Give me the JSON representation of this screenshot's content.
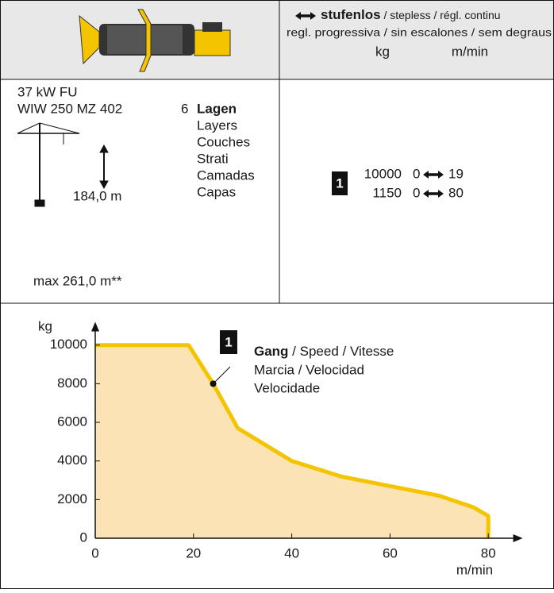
{
  "header": {
    "mode": "stufenlos",
    "mode_rest": " / stepless / régl. continu",
    "mode_line2": "regl. progressiva / sin escalones / sem degraus",
    "unit_load": "kg",
    "unit_speed": "m/min"
  },
  "spec": {
    "power": "37 kW FU",
    "winch": "WIW 250 MZ 402",
    "layer_count": "6",
    "layers": [
      "Lagen",
      "Layers",
      "Couches",
      "Strati",
      "Camadas",
      "Capas"
    ],
    "height": "184,0 m",
    "max_height": "max 261,0 m**"
  },
  "gear": {
    "badge": "1",
    "rows": [
      [
        10000,
        0,
        19
      ],
      [
        1150,
        0,
        80
      ]
    ]
  },
  "chart_data": {
    "type": "line",
    "color": "#f5c400",
    "fill": "#fbe3b5",
    "x": [
      0,
      19,
      24,
      29,
      40,
      50,
      60,
      70,
      77,
      80,
      80
    ],
    "values": [
      10000,
      10000,
      8000,
      5700,
      4000,
      3200,
      2700,
      2200,
      1600,
      1150,
      0
    ],
    "xlim": [
      0,
      87
    ],
    "ylim": [
      0,
      11200
    ],
    "xticks": [
      0,
      20,
      40,
      60,
      80
    ],
    "yticks": [
      0,
      2000,
      4000,
      6000,
      8000,
      10000
    ],
    "xlabel": "m/min",
    "ylabel": "kg",
    "annotation": {
      "badge": "1",
      "x": 24,
      "y": 8000,
      "bold": "Gang",
      "rest": " / Speed / Vitesse",
      "line2": "Marcia / Velocidad",
      "line3": "Velocidade"
    }
  }
}
